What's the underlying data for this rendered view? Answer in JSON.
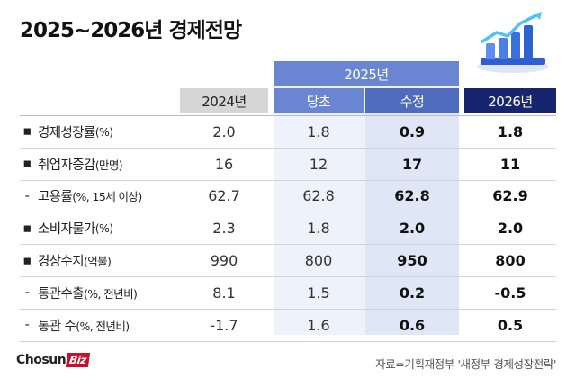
{
  "title": "2025~2026년 경제전망",
  "headers": {
    "y2024": "2024년",
    "y2025": "2025년",
    "initial": "당초",
    "revised": "수정",
    "y2026": "2026년"
  },
  "rows": [
    {
      "lead": "▪",
      "name": "경제성장률",
      "unit": "(%)",
      "y2024": "2.0",
      "initial": "1.8",
      "revised": "0.9",
      "y2026": "1.8"
    },
    {
      "lead": "▪",
      "name": "취업자증감",
      "unit": "(만명)",
      "y2024": "16",
      "initial": "12",
      "revised": "17",
      "y2026": "11"
    },
    {
      "lead": "-",
      "name": "고용률",
      "unit": "(%, 15세 이상)",
      "y2024": "62.7",
      "initial": "62.8",
      "revised": "62.8",
      "y2026": "62.9"
    },
    {
      "lead": "▪",
      "name": "소비자물가",
      "unit": "(%)",
      "y2024": "2.3",
      "initial": "1.8",
      "revised": "2.0",
      "y2026": "2.0"
    },
    {
      "lead": "▪",
      "name": "경상수지",
      "unit": "(억불)",
      "y2024": "990",
      "initial": "800",
      "revised": "950",
      "y2026": "800"
    },
    {
      "lead": "-",
      "name": "통관수출",
      "unit": "(%, 전년비)",
      "y2024": "8.1",
      "initial": "1.5",
      "revised": "0.2",
      "y2026": "-0.5"
    },
    {
      "lead": "-",
      "name": "통관 수",
      "unit": "(%, 전년비)",
      "y2024": "-1.7",
      "initial": "1.6",
      "revised": "0.6",
      "y2026": "0.5"
    }
  ],
  "brand": {
    "name": "Chosun",
    "suffix": "Biz"
  },
  "source": "자료=기획재정부 '새정부 경제성장전략'",
  "colors": {
    "header_2025": "#6a86d2",
    "header_revised": "#4f6bbd",
    "header_2026": "#16256e",
    "header_2024": "#d6d6d6",
    "brand_red": "#c8102e"
  }
}
